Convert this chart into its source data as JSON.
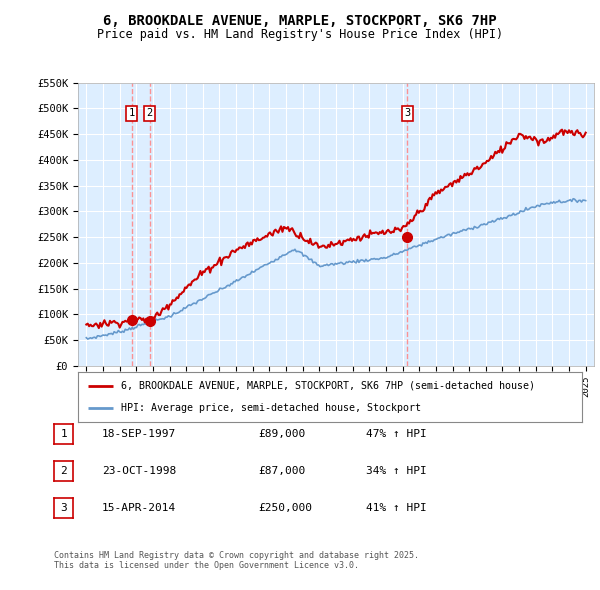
{
  "title_line1": "6, BROOKDALE AVENUE, MARPLE, STOCKPORT, SK6 7HP",
  "title_line2": "Price paid vs. HM Land Registry's House Price Index (HPI)",
  "background_color": "#ffffff",
  "plot_bg_color": "#ddeeff",
  "grid_color": "#ffffff",
  "sale_color": "#cc0000",
  "hpi_color": "#6699cc",
  "vline_color": "#ff8888",
  "annotations": [
    {
      "num": 1,
      "x": 1997.72,
      "price": 89000
    },
    {
      "num": 2,
      "x": 1998.81,
      "price": 87000
    },
    {
      "num": 3,
      "x": 2014.29,
      "price": 250000
    }
  ],
  "legend_entries": [
    "6, BROOKDALE AVENUE, MARPLE, STOCKPORT, SK6 7HP (semi-detached house)",
    "HPI: Average price, semi-detached house, Stockport"
  ],
  "table_data": [
    {
      "num": "1",
      "date": "18-SEP-1997",
      "price": "£89,000",
      "hpi": "47% ↑ HPI"
    },
    {
      "num": "2",
      "date": "23-OCT-1998",
      "price": "£87,000",
      "hpi": "34% ↑ HPI"
    },
    {
      "num": "3",
      "date": "15-APR-2014",
      "price": "£250,000",
      "hpi": "41% ↑ HPI"
    }
  ],
  "footer": "Contains HM Land Registry data © Crown copyright and database right 2025.\nThis data is licensed under the Open Government Licence v3.0.",
  "ylim": [
    0,
    550000
  ],
  "xlim": [
    1994.5,
    2025.5
  ],
  "yticks": [
    0,
    50000,
    100000,
    150000,
    200000,
    250000,
    300000,
    350000,
    400000,
    450000,
    500000,
    550000
  ],
  "ytick_labels": [
    "£0",
    "£50K",
    "£100K",
    "£150K",
    "£200K",
    "£250K",
    "£300K",
    "£350K",
    "£400K",
    "£450K",
    "£500K",
    "£550K"
  ]
}
